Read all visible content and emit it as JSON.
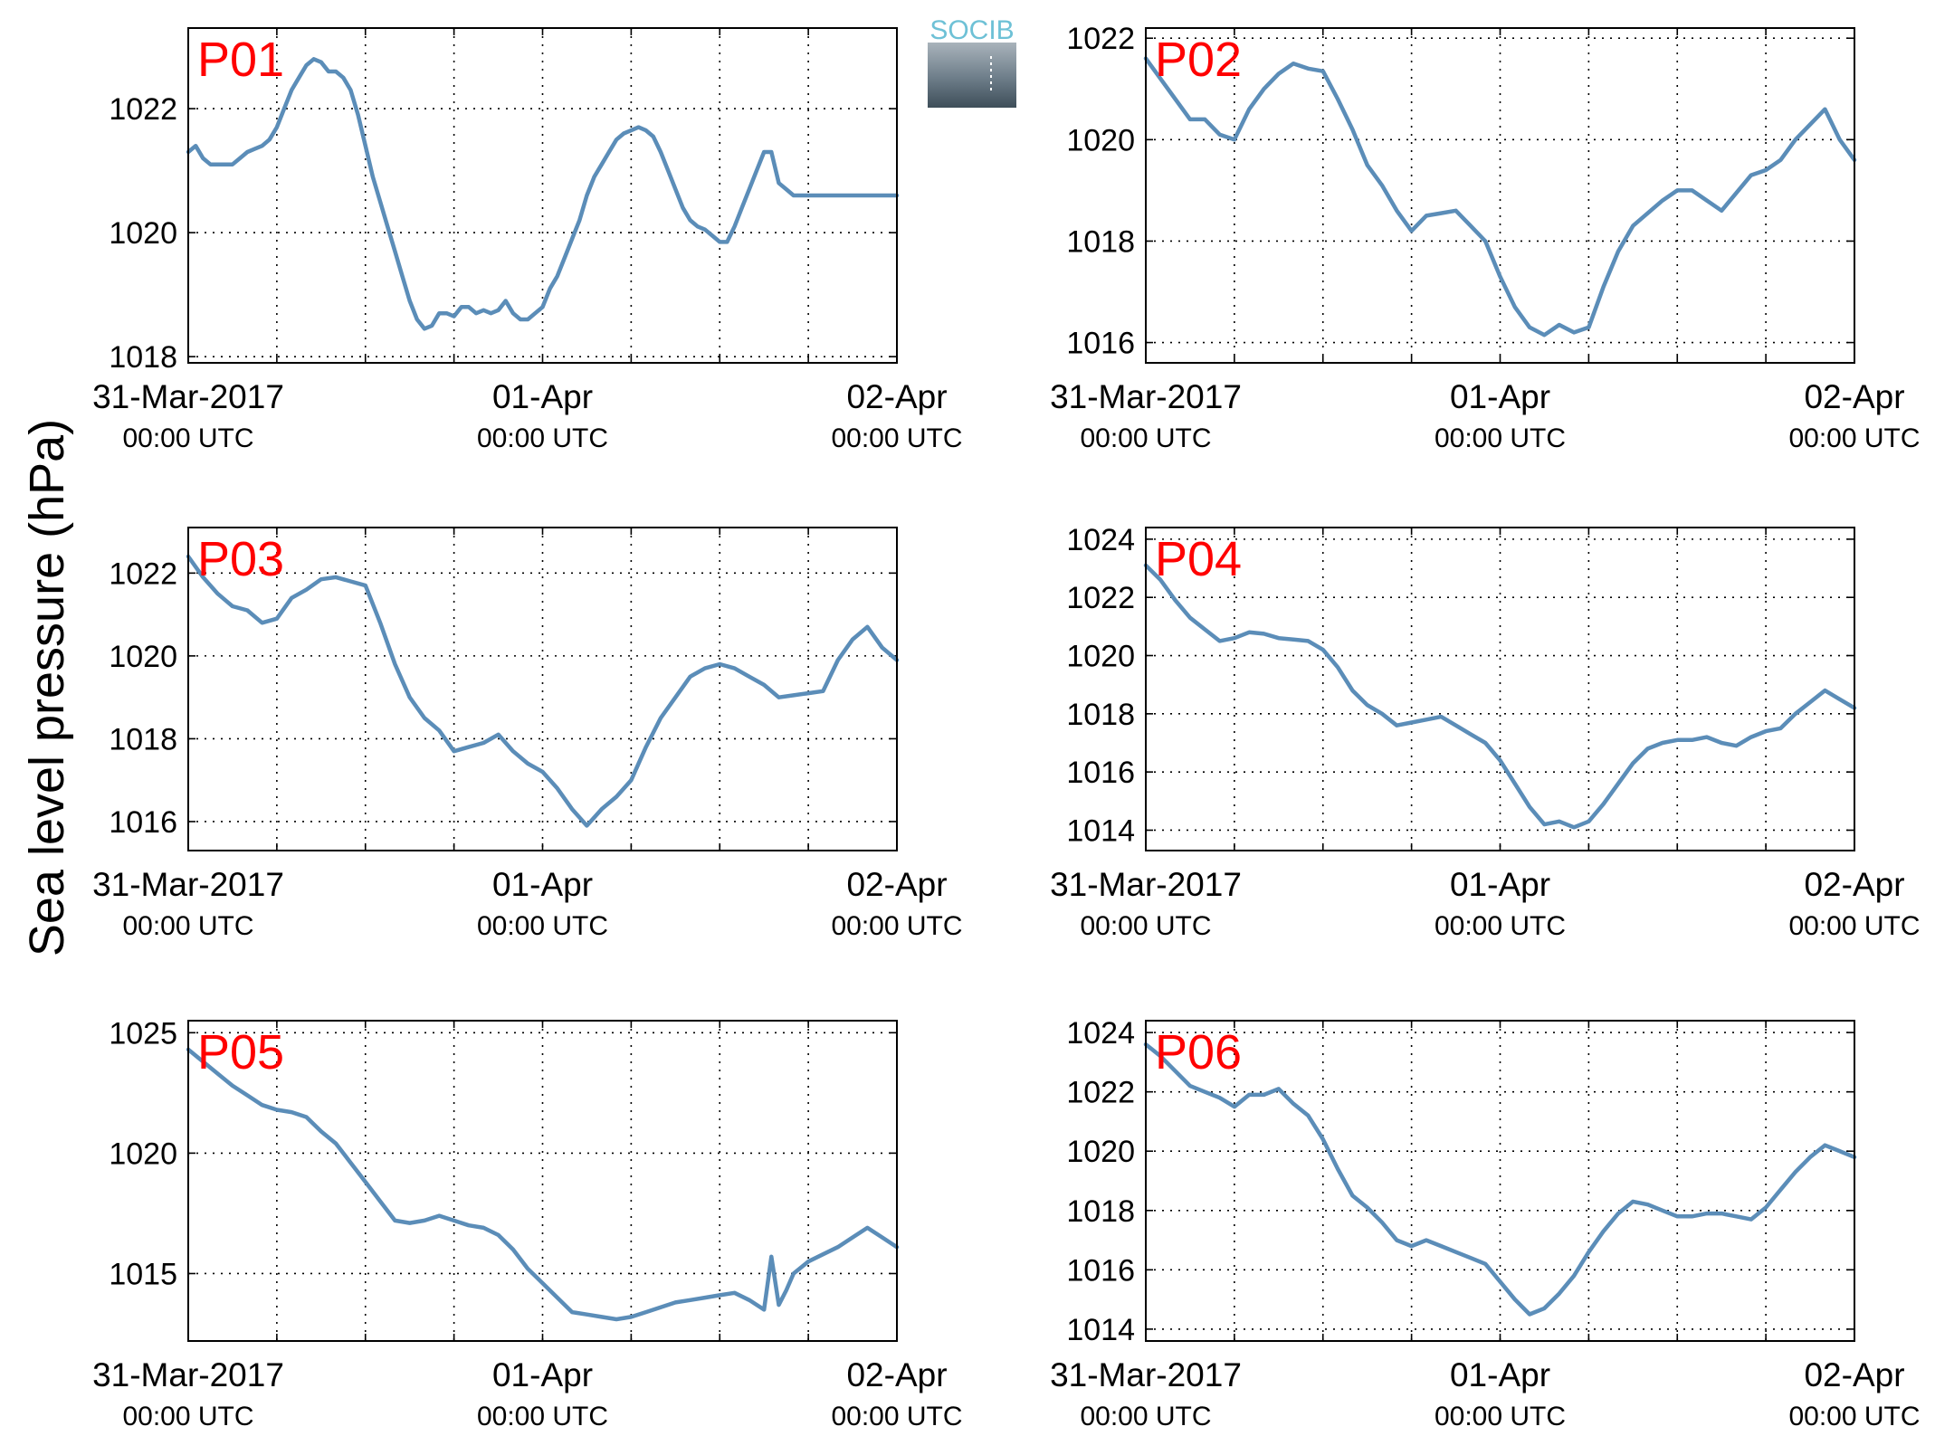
{
  "figure": {
    "ylabel": "Sea level pressure (hPa)",
    "logo_text": "SOCIB",
    "x_ticks": [
      {
        "date": "31-Mar-2017",
        "time": "00:00 UTC"
      },
      {
        "date": "01-Apr",
        "time": "00:00 UTC"
      },
      {
        "date": "02-Apr",
        "time": "00:00 UTC"
      }
    ],
    "colors": {
      "line": "#5b8db8",
      "panel_label": "#ff0000",
      "axes": "#000000",
      "grid": "#000000"
    }
  },
  "chart_data": [
    {
      "type": "line",
      "label": "P01",
      "xlim": [
        0,
        48
      ],
      "ylim": [
        1017.9,
        1023.3
      ],
      "yticks": [
        1018,
        1020,
        1022
      ],
      "x": [
        0,
        0.5,
        1,
        1.5,
        2,
        2.5,
        3,
        3.5,
        4,
        4.5,
        5,
        5.5,
        6,
        6.5,
        7,
        7.5,
        8,
        8.5,
        9,
        9.5,
        10,
        10.5,
        11,
        11.5,
        12,
        12.5,
        13,
        13.5,
        14,
        14.5,
        15,
        15.5,
        16,
        16.5,
        17,
        17.5,
        18,
        18.5,
        19,
        19.5,
        20,
        20.5,
        21,
        21.5,
        22,
        22.5,
        23,
        23.5,
        24,
        24.5,
        25,
        25.5,
        26,
        26.5,
        27,
        27.5,
        28,
        28.5,
        29,
        29.5,
        30,
        30.5,
        31,
        31.5,
        32,
        32.5,
        33,
        33.5,
        34,
        34.5,
        35,
        35.5,
        36,
        36.5,
        37,
        37.5,
        38,
        38.5,
        39,
        39.5,
        40,
        40.5,
        41,
        41.5,
        42,
        42.5,
        43,
        43.5,
        44,
        44.5,
        45,
        45.5,
        46,
        46.5,
        47,
        47.5,
        48
      ],
      "y": [
        1021.3,
        1021.4,
        1021.2,
        1021.1,
        1021.1,
        1021.1,
        1021.1,
        1021.2,
        1021.3,
        1021.35,
        1021.4,
        1021.5,
        1021.7,
        1022.0,
        1022.3,
        1022.5,
        1022.7,
        1022.8,
        1022.75,
        1022.6,
        1022.6,
        1022.5,
        1022.3,
        1021.9,
        1021.4,
        1020.9,
        1020.5,
        1020.1,
        1019.7,
        1019.3,
        1018.9,
        1018.6,
        1018.45,
        1018.5,
        1018.7,
        1018.7,
        1018.65,
        1018.8,
        1018.8,
        1018.7,
        1018.75,
        1018.7,
        1018.75,
        1018.9,
        1018.7,
        1018.6,
        1018.6,
        1018.7,
        1018.8,
        1019.1,
        1019.3,
        1019.6,
        1019.9,
        1020.2,
        1020.6,
        1020.9,
        1021.1,
        1021.3,
        1021.5,
        1021.6,
        1021.65,
        1021.7,
        1021.65,
        1021.55,
        1021.3,
        1021.0,
        1020.7,
        1020.4,
        1020.2,
        1020.1,
        1020.05,
        1019.95,
        1019.85,
        1019.85,
        1020.1,
        1020.4,
        1020.7,
        1021.0,
        1021.3,
        1021.3,
        1020.8,
        1020.7,
        1020.6,
        1020.6,
        1020.6,
        1020.6,
        1020.6,
        1020.6,
        1020.6,
        1020.6,
        1020.6,
        1020.6,
        1020.6,
        1020.6,
        1020.6,
        1020.6,
        1020.6
      ]
    },
    {
      "type": "line",
      "label": "P02",
      "xlim": [
        0,
        48
      ],
      "ylim": [
        1015.6,
        1022.2
      ],
      "yticks": [
        1016,
        1018,
        1020,
        1022
      ],
      "x": [
        0,
        1,
        2,
        3,
        4,
        5,
        6,
        7,
        8,
        9,
        10,
        11,
        12,
        13,
        14,
        15,
        16,
        17,
        18,
        19,
        20,
        21,
        22,
        23,
        24,
        25,
        26,
        27,
        28,
        29,
        30,
        31,
        32,
        33,
        34,
        35,
        36,
        37,
        38,
        39,
        40,
        41,
        42,
        43,
        44,
        45,
        46,
        47,
        48
      ],
      "y": [
        1021.6,
        1021.2,
        1020.8,
        1020.4,
        1020.4,
        1020.1,
        1020.0,
        1020.6,
        1021.0,
        1021.3,
        1021.5,
        1021.4,
        1021.35,
        1020.8,
        1020.2,
        1019.5,
        1019.1,
        1018.6,
        1018.2,
        1018.5,
        1018.55,
        1018.6,
        1018.3,
        1018.0,
        1017.3,
        1016.7,
        1016.3,
        1016.15,
        1016.35,
        1016.2,
        1016.3,
        1017.1,
        1017.8,
        1018.3,
        1018.55,
        1018.8,
        1019.0,
        1019.0,
        1018.8,
        1018.6,
        1018.95,
        1019.3,
        1019.4,
        1019.6,
        1020.0,
        1020.3,
        1020.6,
        1020.0,
        1019.6
      ]
    },
    {
      "type": "line",
      "label": "P03",
      "xlim": [
        0,
        48
      ],
      "ylim": [
        1015.3,
        1023.1
      ],
      "yticks": [
        1016,
        1018,
        1020,
        1022
      ],
      "x": [
        0,
        1,
        2,
        3,
        4,
        5,
        6,
        7,
        8,
        9,
        10,
        11,
        12,
        13,
        14,
        15,
        16,
        17,
        18,
        19,
        20,
        21,
        22,
        23,
        24,
        25,
        26,
        27,
        28,
        29,
        30,
        31,
        32,
        33,
        34,
        35,
        36,
        37,
        38,
        39,
        40,
        41,
        42,
        43,
        44,
        45,
        46,
        47,
        48
      ],
      "y": [
        1022.4,
        1021.9,
        1021.5,
        1021.2,
        1021.1,
        1020.8,
        1020.9,
        1021.4,
        1021.6,
        1021.85,
        1021.9,
        1021.8,
        1021.7,
        1020.8,
        1019.8,
        1019.0,
        1018.5,
        1018.2,
        1017.7,
        1017.8,
        1017.9,
        1018.1,
        1017.7,
        1017.4,
        1017.2,
        1016.8,
        1016.3,
        1015.9,
        1016.3,
        1016.6,
        1017.0,
        1017.8,
        1018.5,
        1019.0,
        1019.5,
        1019.7,
        1019.8,
        1019.7,
        1019.5,
        1019.3,
        1019.0,
        1019.05,
        1019.1,
        1019.15,
        1019.9,
        1020.4,
        1020.7,
        1020.2,
        1019.9
      ]
    },
    {
      "type": "line",
      "label": "P04",
      "xlim": [
        0,
        48
      ],
      "ylim": [
        1013.3,
        1024.4
      ],
      "yticks": [
        1014,
        1016,
        1018,
        1020,
        1022,
        1024
      ],
      "x": [
        0,
        1,
        2,
        3,
        4,
        5,
        6,
        7,
        8,
        9,
        10,
        11,
        12,
        13,
        14,
        15,
        16,
        17,
        18,
        19,
        20,
        21,
        22,
        23,
        24,
        25,
        26,
        27,
        28,
        29,
        30,
        31,
        32,
        33,
        34,
        35,
        36,
        37,
        38,
        39,
        40,
        41,
        42,
        43,
        44,
        45,
        46,
        47,
        48
      ],
      "y": [
        1023.1,
        1022.6,
        1021.9,
        1021.3,
        1020.9,
        1020.5,
        1020.6,
        1020.8,
        1020.75,
        1020.6,
        1020.55,
        1020.5,
        1020.2,
        1019.6,
        1018.8,
        1018.3,
        1018.0,
        1017.6,
        1017.7,
        1017.8,
        1017.9,
        1017.6,
        1017.3,
        1017.0,
        1016.4,
        1015.6,
        1014.8,
        1014.2,
        1014.3,
        1014.1,
        1014.3,
        1014.9,
        1015.6,
        1016.3,
        1016.8,
        1017.0,
        1017.1,
        1017.1,
        1017.2,
        1017.0,
        1016.9,
        1017.2,
        1017.4,
        1017.5,
        1018.0,
        1018.4,
        1018.8,
        1018.5,
        1018.2
      ]
    },
    {
      "type": "line",
      "label": "P05",
      "xlim": [
        0,
        48
      ],
      "ylim": [
        1012.2,
        1025.5
      ],
      "yticks": [
        1015,
        1020,
        1025
      ],
      "x": [
        0,
        1,
        2,
        3,
        4,
        5,
        6,
        7,
        8,
        9,
        10,
        11,
        12,
        13,
        14,
        15,
        16,
        17,
        18,
        19,
        20,
        21,
        22,
        23,
        24,
        25,
        26,
        27,
        28,
        29,
        30,
        31,
        32,
        33,
        34,
        35,
        36,
        37,
        38,
        39,
        39.5,
        40,
        40.5,
        41,
        42,
        43,
        44,
        45,
        46,
        47,
        48
      ],
      "y": [
        1024.3,
        1023.8,
        1023.3,
        1022.8,
        1022.4,
        1022.0,
        1021.8,
        1021.7,
        1021.5,
        1020.9,
        1020.4,
        1019.6,
        1018.8,
        1018.0,
        1017.2,
        1017.1,
        1017.2,
        1017.4,
        1017.2,
        1017.0,
        1016.9,
        1016.6,
        1016.0,
        1015.2,
        1014.6,
        1014.0,
        1013.4,
        1013.3,
        1013.2,
        1013.1,
        1013.2,
        1013.4,
        1013.6,
        1013.8,
        1013.9,
        1014.0,
        1014.1,
        1014.2,
        1013.9,
        1013.5,
        1015.7,
        1013.7,
        1014.3,
        1015.0,
        1015.5,
        1015.8,
        1016.1,
        1016.5,
        1016.9,
        1016.5,
        1016.1
      ]
    },
    {
      "type": "line",
      "label": "P06",
      "xlim": [
        0,
        48
      ],
      "ylim": [
        1013.6,
        1024.4
      ],
      "yticks": [
        1014,
        1016,
        1018,
        1020,
        1022,
        1024
      ],
      "x": [
        0,
        1,
        2,
        3,
        4,
        5,
        6,
        7,
        8,
        9,
        10,
        11,
        12,
        13,
        14,
        15,
        16,
        17,
        18,
        19,
        20,
        21,
        22,
        23,
        24,
        25,
        26,
        27,
        28,
        29,
        30,
        31,
        32,
        33,
        34,
        35,
        36,
        37,
        38,
        39,
        40,
        41,
        42,
        43,
        44,
        45,
        46,
        47,
        48
      ],
      "y": [
        1023.6,
        1023.2,
        1022.7,
        1022.2,
        1022.0,
        1021.8,
        1021.5,
        1021.9,
        1021.9,
        1022.1,
        1021.6,
        1021.2,
        1020.4,
        1019.4,
        1018.5,
        1018.1,
        1017.6,
        1017.0,
        1016.8,
        1017.0,
        1016.8,
        1016.6,
        1016.4,
        1016.2,
        1015.6,
        1015.0,
        1014.5,
        1014.7,
        1015.2,
        1015.8,
        1016.6,
        1017.3,
        1017.9,
        1018.3,
        1018.2,
        1018.0,
        1017.8,
        1017.8,
        1017.9,
        1017.9,
        1017.8,
        1017.7,
        1018.1,
        1018.7,
        1019.3,
        1019.8,
        1020.2,
        1020.0,
        1019.8
      ]
    }
  ]
}
